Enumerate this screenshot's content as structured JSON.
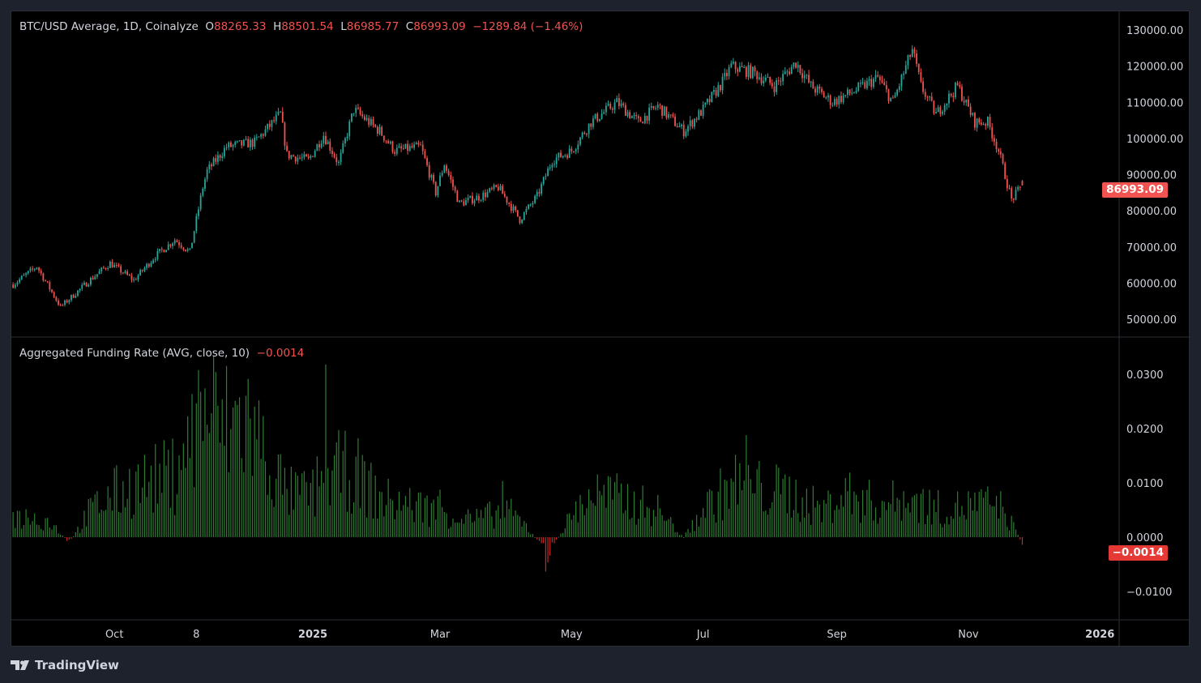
{
  "header": {
    "symbol": "BTC/USD Average, 1D, Coinalyze",
    "open_label": "O",
    "open": "88265.33",
    "high_label": "H",
    "high": "88501.54",
    "low_label": "L",
    "low": "86985.77",
    "close_label": "C",
    "close": "86993.09",
    "change": "−1289.84 (−1.46%)"
  },
  "indicator": {
    "title": "Aggregated Funding Rate (AVG, close, 10)",
    "value": "−0.0014"
  },
  "price_tag": "86993.09",
  "funding_tag": "−0.0014",
  "footer": {
    "brand": "TradingView"
  },
  "colors": {
    "up": "#26a69a",
    "down": "#ef5350",
    "funding_pos": "#2e7d32",
    "funding_neg": "#c62828",
    "background": "#000000",
    "frame": "#1e222d"
  },
  "chart_data": [
    {
      "type": "candlestick",
      "title": "BTC/USD Average, 1D, Coinalyze",
      "ylim": [
        45000,
        133000
      ],
      "yticks": [
        "130000.00",
        "120000.00",
        "110000.00",
        "100000.00",
        "90000.00",
        "80000.00",
        "70000.00",
        "60000.00",
        "50000.00"
      ],
      "xticks": [
        {
          "label": "Oct",
          "date": "2024-10-01"
        },
        {
          "label": "8",
          "date": "2024-11-08"
        },
        {
          "label": "2025",
          "date": "2025-01-01",
          "bold": true
        },
        {
          "label": "Mar",
          "date": "2025-03-01"
        },
        {
          "label": "May",
          "date": "2025-05-01"
        },
        {
          "label": "Jul",
          "date": "2025-07-01"
        },
        {
          "label": "Sep",
          "date": "2025-09-01"
        },
        {
          "label": "Nov",
          "date": "2025-11-01"
        },
        {
          "label": "2026",
          "date": "2026-01-01",
          "bold": true
        }
      ],
      "approx_close": [
        [
          "2024-08-15",
          59600
        ],
        [
          "2024-08-26",
          64600
        ],
        [
          "2024-09-06",
          53400
        ],
        [
          "2024-09-20",
          61000
        ],
        [
          "2024-09-29",
          65500
        ],
        [
          "2024-10-10",
          60800
        ],
        [
          "2024-10-20",
          67500
        ],
        [
          "2024-10-29",
          72000
        ],
        [
          "2024-11-05",
          68600
        ],
        [
          "2024-11-11",
          86500
        ],
        [
          "2024-11-13",
          91000
        ],
        [
          "2024-11-22",
          97700
        ],
        [
          "2024-12-05",
          98900
        ],
        [
          "2024-12-17",
          106700
        ],
        [
          "2024-12-20",
          95500
        ],
        [
          "2024-12-30",
          94000
        ],
        [
          "2025-01-06",
          101000
        ],
        [
          "2025-01-13",
          93000
        ],
        [
          "2025-01-20",
          108000
        ],
        [
          "2025-02-01",
          102000
        ],
        [
          "2025-02-08",
          96600
        ],
        [
          "2025-02-20",
          97700
        ],
        [
          "2025-02-27",
          85000
        ],
        [
          "2025-03-03",
          93000
        ],
        [
          "2025-03-10",
          82000
        ],
        [
          "2025-03-20",
          84000
        ],
        [
          "2025-03-28",
          86500
        ],
        [
          "2025-04-07",
          77600
        ],
        [
          "2025-04-15",
          84000
        ],
        [
          "2025-04-22",
          94000
        ],
        [
          "2025-05-01",
          96600
        ],
        [
          "2025-05-10",
          104500
        ],
        [
          "2025-05-22",
          110000
        ],
        [
          "2025-06-01",
          104500
        ],
        [
          "2025-06-10",
          109000
        ],
        [
          "2025-06-22",
          102000
        ],
        [
          "2025-07-01",
          108000
        ],
        [
          "2025-07-10",
          115600
        ],
        [
          "2025-07-14",
          120000
        ],
        [
          "2025-07-25",
          118000
        ],
        [
          "2025-08-03",
          114500
        ],
        [
          "2025-08-13",
          121000
        ],
        [
          "2025-08-20",
          114500
        ],
        [
          "2025-08-30",
          110000
        ],
        [
          "2025-09-10",
          113400
        ],
        [
          "2025-09-20",
          116800
        ],
        [
          "2025-09-27",
          110000
        ],
        [
          "2025-10-06",
          124600
        ],
        [
          "2025-10-10",
          114500
        ],
        [
          "2025-10-17",
          106700
        ],
        [
          "2025-10-27",
          114500
        ],
        [
          "2025-11-04",
          104500
        ],
        [
          "2025-11-10",
          104500
        ],
        [
          "2025-11-15",
          96600
        ],
        [
          "2025-11-21",
          83000
        ],
        [
          "2025-11-26",
          86993.09
        ]
      ],
      "last": {
        "open": 88265.33,
        "high": 88501.54,
        "low": 86985.77,
        "close": 86993.09
      }
    },
    {
      "type": "bar",
      "title": "Aggregated Funding Rate (AVG, close, 10)",
      "ylim": [
        -0.0155,
        0.0345
      ],
      "yticks": [
        "0.0300",
        "0.0200",
        "0.0100",
        "0.0000",
        "−0.0100"
      ],
      "approx_values": [
        [
          "2024-08-15",
          0.004
        ],
        [
          "2024-09-01",
          0.003
        ],
        [
          "2024-09-10",
          -0.001
        ],
        [
          "2024-09-20",
          0.005
        ],
        [
          "2024-10-01",
          0.008
        ],
        [
          "2024-10-15",
          0.01
        ],
        [
          "2024-11-01",
          0.012
        ],
        [
          "2024-11-11",
          0.025
        ],
        [
          "2024-11-20",
          0.02
        ],
        [
          "2024-12-01",
          0.022
        ],
        [
          "2024-12-10",
          0.015
        ],
        [
          "2024-12-20",
          0.008
        ],
        [
          "2025-01-01",
          0.008
        ],
        [
          "2025-01-07",
          0.012
        ],
        [
          "2025-01-20",
          0.012
        ],
        [
          "2025-02-01",
          0.007
        ],
        [
          "2025-02-15",
          0.006
        ],
        [
          "2025-03-01",
          0.005
        ],
        [
          "2025-03-15",
          0.003
        ],
        [
          "2025-04-01",
          0.005
        ],
        [
          "2025-04-10",
          0.002
        ],
        [
          "2025-04-20",
          -0.003
        ],
        [
          "2025-05-01",
          0.004
        ],
        [
          "2025-05-10",
          0.008
        ],
        [
          "2025-05-25",
          0.007
        ],
        [
          "2025-06-10",
          0.005
        ],
        [
          "2025-06-22",
          0.0
        ],
        [
          "2025-07-01",
          0.005
        ],
        [
          "2025-07-15",
          0.01
        ],
        [
          "2025-07-25",
          0.009
        ],
        [
          "2025-08-10",
          0.008
        ],
        [
          "2025-08-25",
          0.005
        ],
        [
          "2025-09-05",
          0.008
        ],
        [
          "2025-09-20",
          0.006
        ],
        [
          "2025-10-05",
          0.007
        ],
        [
          "2025-10-20",
          0.005
        ],
        [
          "2025-11-05",
          0.006
        ],
        [
          "2025-11-15",
          0.006
        ],
        [
          "2025-11-22",
          0.002
        ],
        [
          "2025-11-26",
          -0.0014
        ]
      ]
    }
  ]
}
